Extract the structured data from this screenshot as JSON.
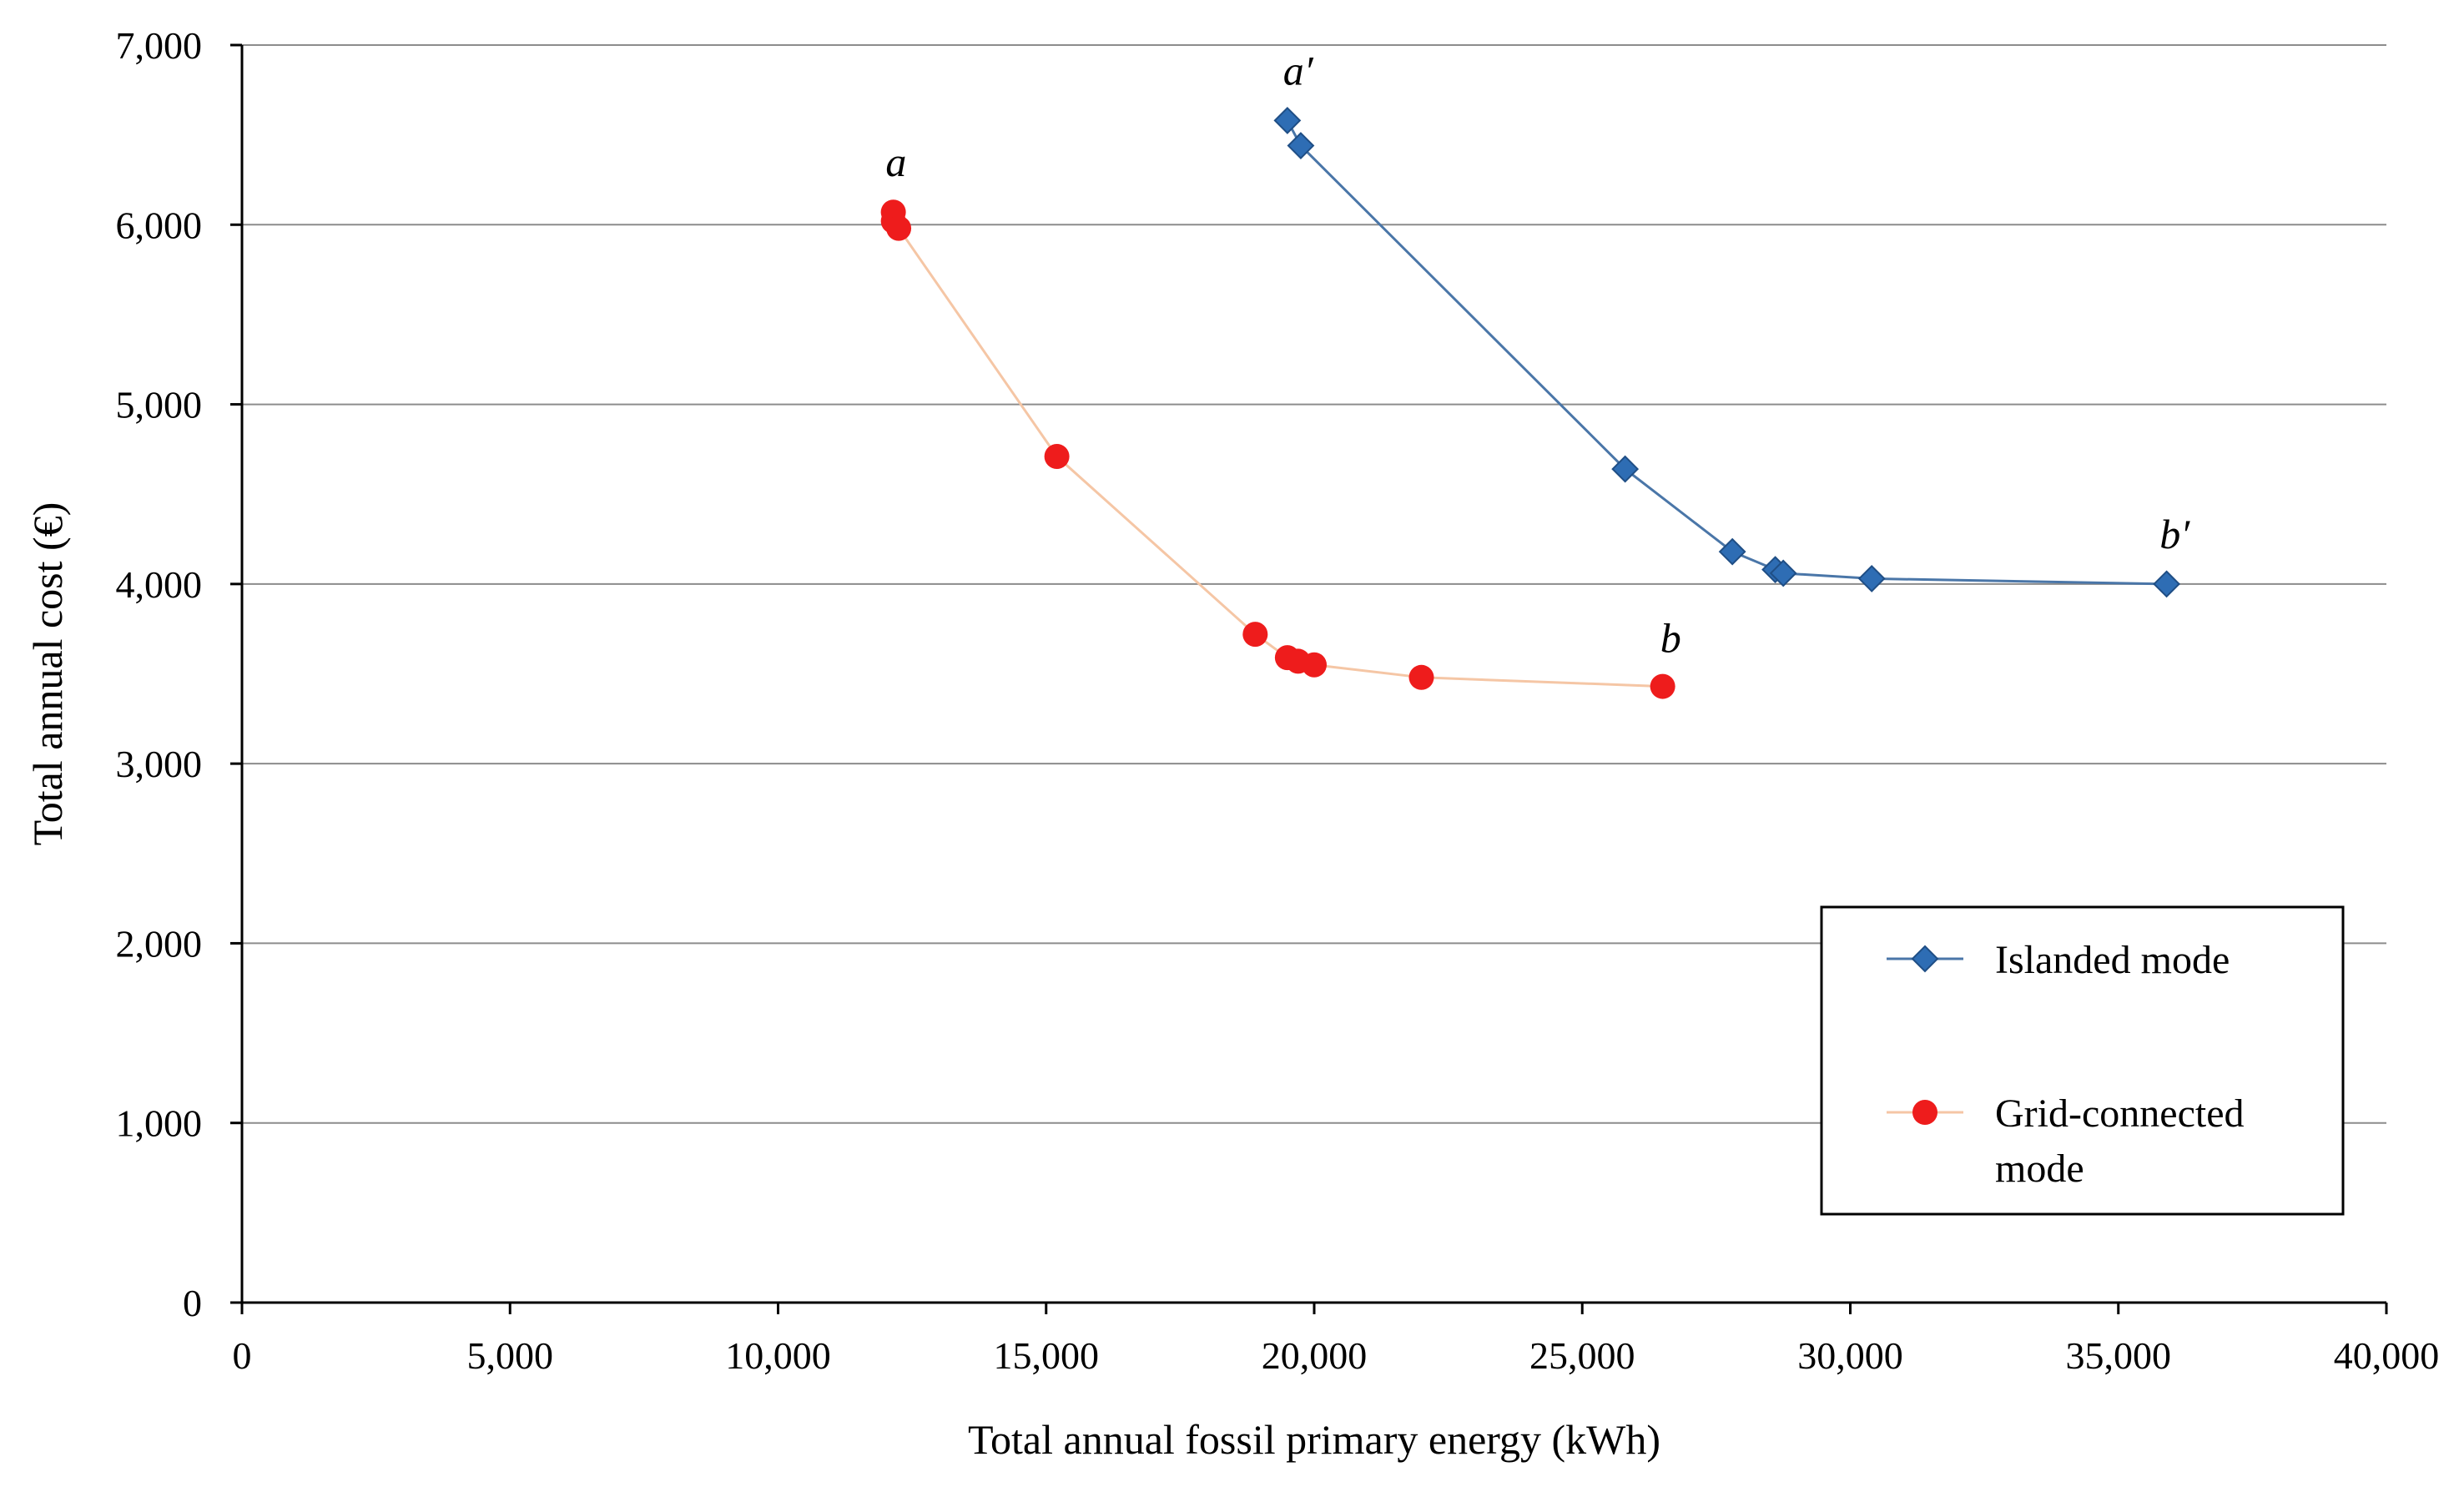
{
  "chart_data": {
    "type": "scatter",
    "title": "",
    "xlabel": "Total annual fossil primary energy (kWh)",
    "ylabel": "Total annual cost (€)",
    "xlim": [
      0,
      40000
    ],
    "ylim": [
      0,
      7000
    ],
    "x_ticks": [
      0,
      5000,
      10000,
      15000,
      20000,
      25000,
      30000,
      35000,
      40000
    ],
    "x_tick_labels": [
      "0",
      "5,000",
      "10,000",
      "15,000",
      "20,000",
      "25,000",
      "30,000",
      "35,000",
      "40,000"
    ],
    "y_ticks": [
      0,
      1000,
      2000,
      3000,
      4000,
      5000,
      6000,
      7000
    ],
    "y_tick_labels": [
      "0",
      "1,000",
      "2,000",
      "3,000",
      "4,000",
      "5,000",
      "6,000",
      "7,000"
    ],
    "grid": "horizontal",
    "legend_position": "bottom-right",
    "series": [
      {
        "name": "Islanded mode",
        "legend_lines": [
          "Islanded mode"
        ],
        "color": "#2e6db4",
        "line_color": "#4a76a8",
        "marker": "diamond",
        "points": [
          {
            "x": 19500,
            "y": 6580
          },
          {
            "x": 19750,
            "y": 6440
          },
          {
            "x": 25800,
            "y": 4640
          },
          {
            "x": 27800,
            "y": 4180
          },
          {
            "x": 28600,
            "y": 4080
          },
          {
            "x": 28750,
            "y": 4060
          },
          {
            "x": 30400,
            "y": 4030
          },
          {
            "x": 35900,
            "y": 4000
          }
        ]
      },
      {
        "name": "Grid-connected mode",
        "legend_lines": [
          "Grid-connected",
          "mode"
        ],
        "color": "#ee1c1c",
        "line_color": "#f5c6a5",
        "marker": "circle",
        "points": [
          {
            "x": 12150,
            "y": 6070
          },
          {
            "x": 12150,
            "y": 6020
          },
          {
            "x": 12250,
            "y": 5980
          },
          {
            "x": 15200,
            "y": 4710
          },
          {
            "x": 18900,
            "y": 3720
          },
          {
            "x": 19500,
            "y": 3590
          },
          {
            "x": 19700,
            "y": 3570
          },
          {
            "x": 20000,
            "y": 3550
          },
          {
            "x": 22000,
            "y": 3480
          },
          {
            "x": 26500,
            "y": 3430
          }
        ]
      }
    ],
    "annotations": [
      {
        "text": "a",
        "x": 12200,
        "y": 6270
      },
      {
        "text": "a′",
        "x": 19700,
        "y": 6780
      },
      {
        "text": "b",
        "x": 26650,
        "y": 3620
      },
      {
        "text": "b′",
        "x": 36050,
        "y": 4200
      }
    ]
  }
}
